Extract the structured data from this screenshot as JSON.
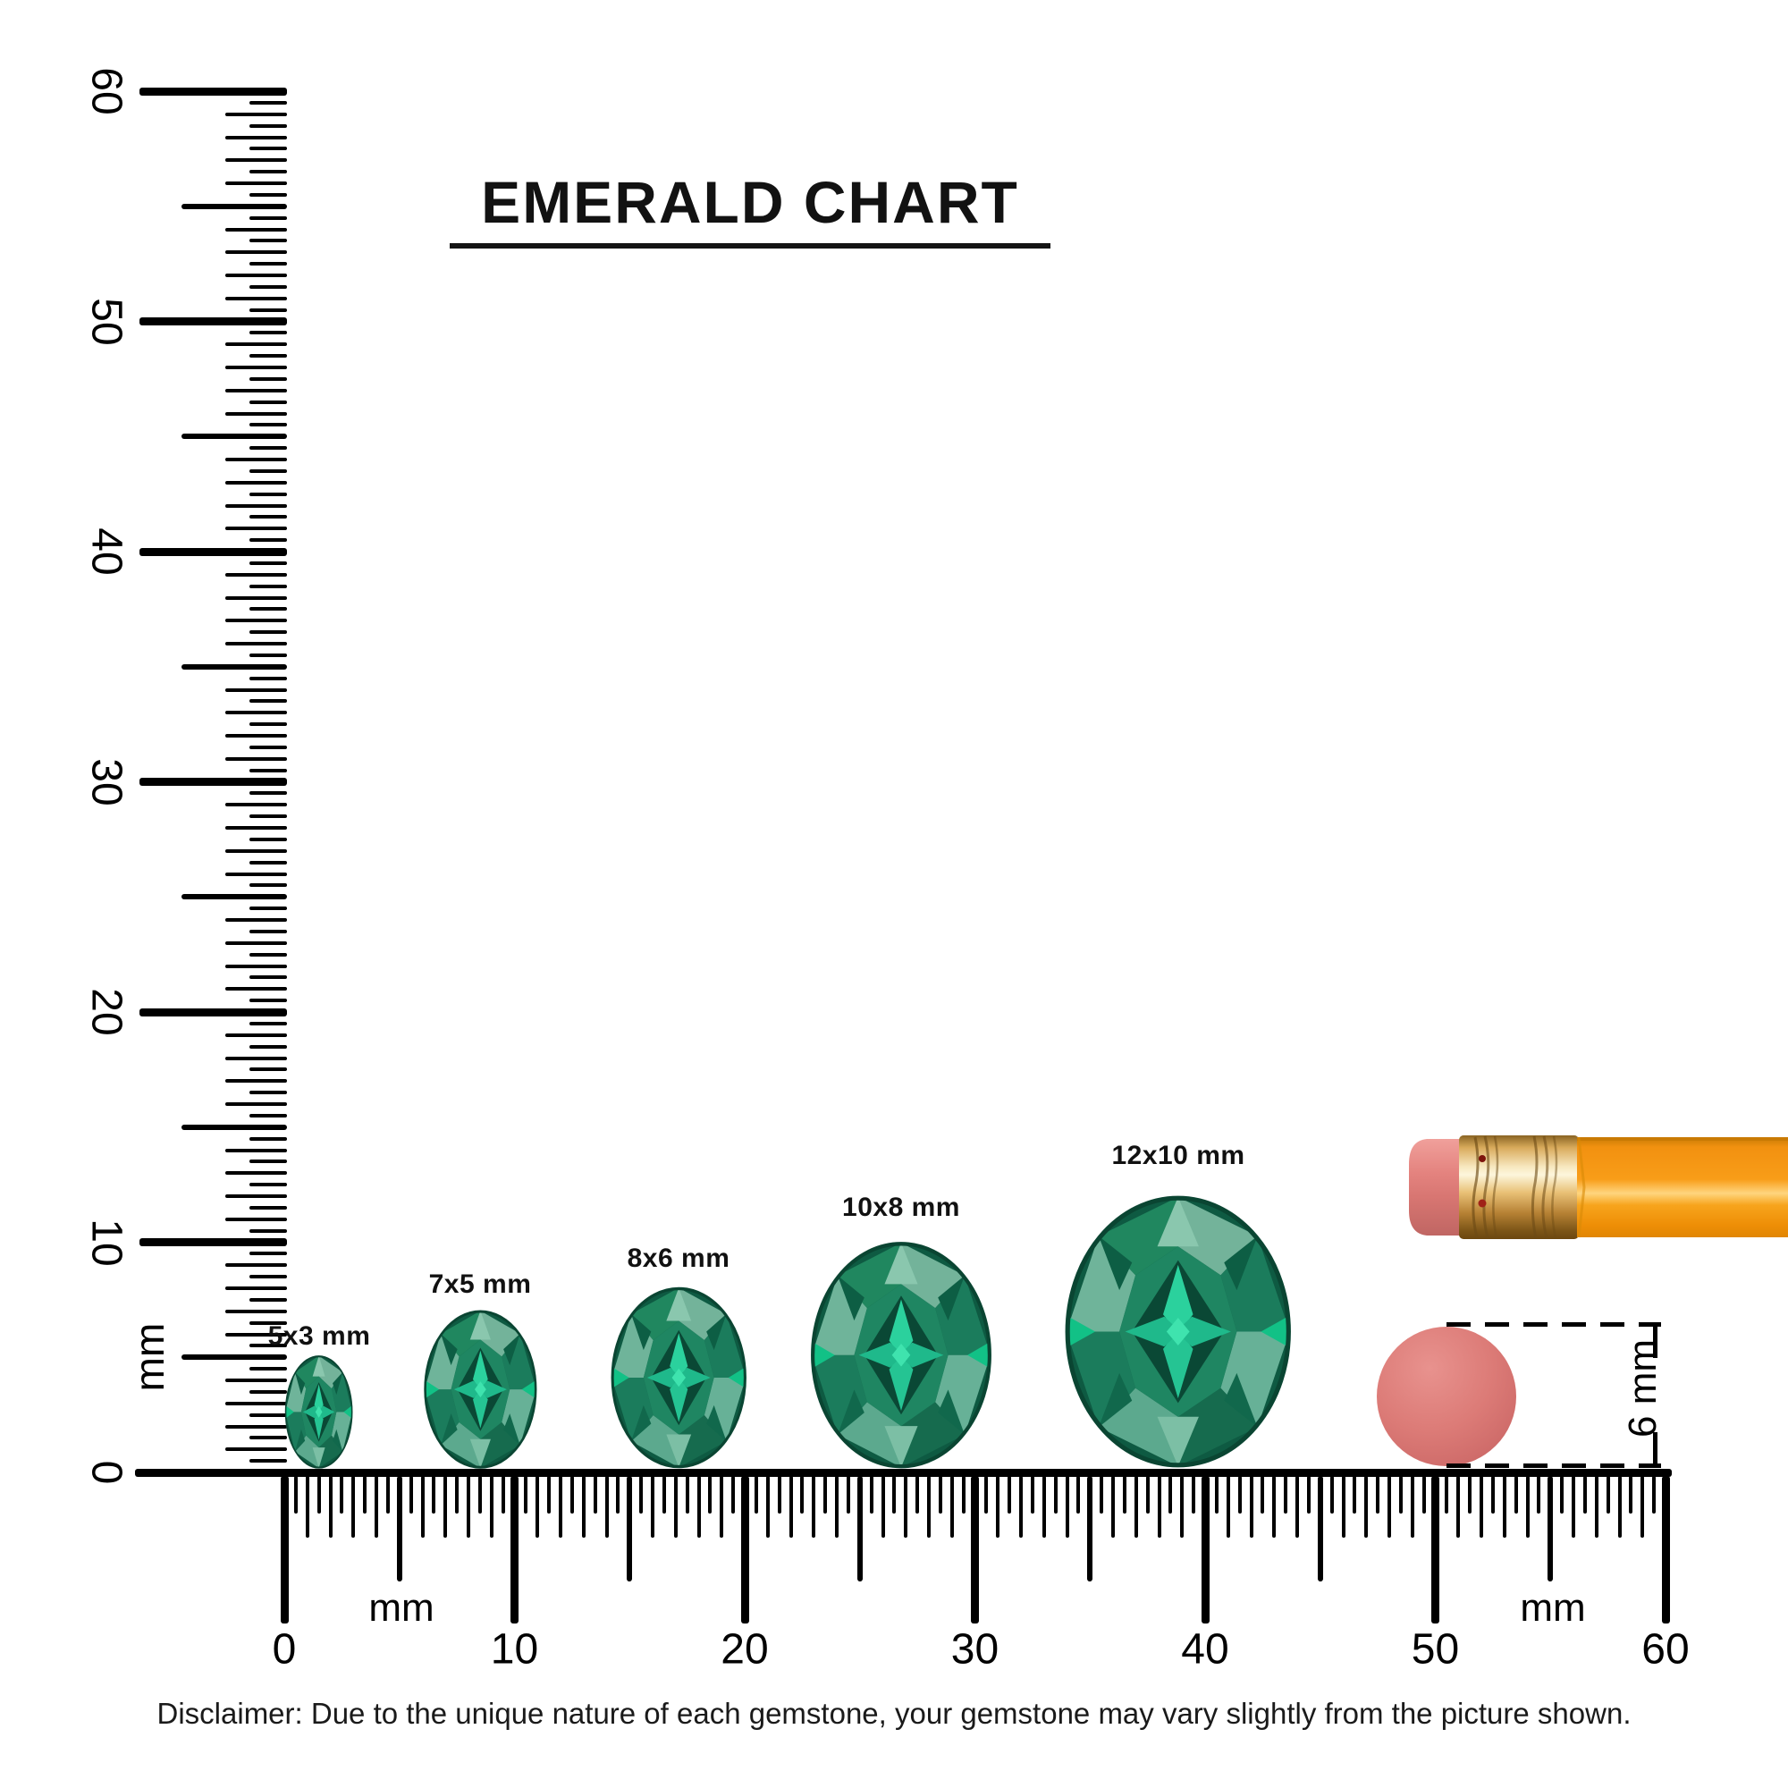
{
  "title": {
    "text": "EMERALD CHART"
  },
  "rulers": {
    "unit": "mm",
    "vertical": {
      "tick_labels": [
        "0",
        "10",
        "20",
        "30",
        "40",
        "50",
        "60"
      ],
      "unit_label": "mm"
    },
    "horizontal": {
      "tick_labels": [
        "0",
        "10",
        "20",
        "30",
        "40",
        "50",
        "60"
      ],
      "unit_label_left": "mm",
      "unit_label_right": "mm"
    }
  },
  "gems": [
    {
      "label": "5x3 mm",
      "height_mm": 5,
      "width_mm": 3
    },
    {
      "label": "7x5 mm",
      "height_mm": 7,
      "width_mm": 5
    },
    {
      "label": "8x6 mm",
      "height_mm": 8,
      "width_mm": 6
    },
    {
      "label": "10x8 mm",
      "height_mm": 10,
      "width_mm": 8
    },
    {
      "label": "12x10 mm",
      "height_mm": 12,
      "width_mm": 10
    }
  ],
  "reference_objects": {
    "pencil": "pencil with eraser",
    "eraser_diameter": {
      "label": "6 mm",
      "diameter_mm": 6
    }
  },
  "disclaimer": "Disclaimer: Due to the unique nature of each gemstone, your gemstone may vary slightly from the picture shown.",
  "chart_data": {
    "type": "table",
    "title": "EMERALD CHART",
    "unit": "mm",
    "ruler_range_mm": [
      0,
      60
    ],
    "gem_shape": "oval",
    "gem_sizes_mm": [
      [
        5,
        3
      ],
      [
        7,
        5
      ],
      [
        8,
        6
      ],
      [
        10,
        8
      ],
      [
        12,
        10
      ]
    ],
    "reference_circle_diameter_mm": 6
  },
  "colors": {
    "ink": "#000000",
    "emerald_base": "#0e5a42",
    "emerald_table": "#1f8662",
    "emerald_bright": "#2bd19d",
    "emerald_pale": "#73b39a",
    "eraser_pink": "#d97674",
    "ferrule_gold": "#e9c177",
    "pencil_orange": "#f89d18"
  }
}
